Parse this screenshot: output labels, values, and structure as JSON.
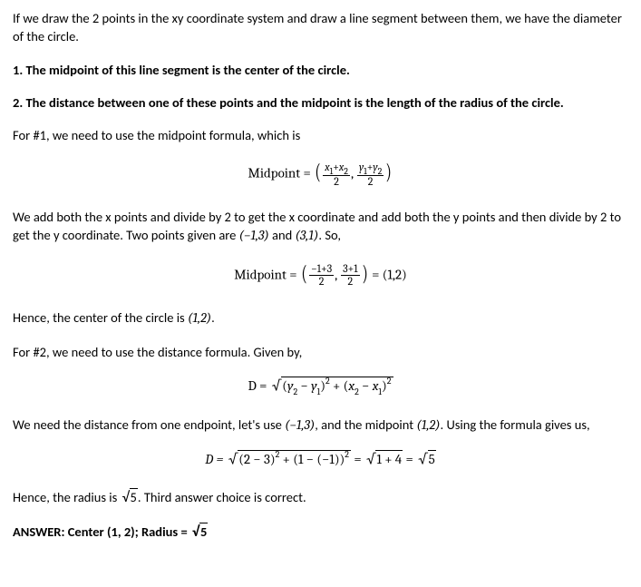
{
  "p1": "If we draw the 2 points in the xy coordinate system and draw a line segment between them, we have the diameter of the circle.",
  "p2": "1. The midpoint of this line segment is the center of the circle.",
  "p3": "2. The distance between one of these points and the midpoint is the length of the radius of the circle.",
  "p4": "For #1, we need to use the midpoint formula, which is",
  "eq1": {
    "label": "Midpoint = ",
    "f1_num": "x₁+x₂",
    "f1_den": "2",
    "f2_num": "y₁+y₂",
    "f2_den": "2"
  },
  "p5_a": "We add both the x points and divide by 2 to get the x coordinate and add both the y points and then divide by 2 to get the y coordinate. Two points given are ",
  "p5_b": "(−1,3)",
  "p5_c": " and ",
  "p5_d": "(3,1)",
  "p5_e": ". So,",
  "eq2": {
    "label": "Midpoint = ",
    "f1_num": "−1+3",
    "f1_den": "2",
    "f2_num": "3+1",
    "f2_den": "2",
    "result": " = (1,2)"
  },
  "p6_a": "Hence, the center of the circle is ",
  "p6_b": "(1,2)",
  "p6_c": ".",
  "p7": "For #2, we need to use the distance formula. Given by,",
  "eq3_label": "D = ",
  "p8_a": "We need the distance from one endpoint, let's use ",
  "p8_b": "(−1,3)",
  "p8_c": ", and the midpoint ",
  "p8_d": "(1,2)",
  "p8_e": ". Using the formula gives us,",
  "eq4_label": "D = ",
  "eq4_mid": " = ",
  "eq4_r2": "1 + 4",
  "eq4_eq2": " = ",
  "eq4_r3": "5",
  "p9_a": "Hence, the radius is ",
  "p9_b": "5",
  "p9_c": ". Third answer choice is correct.",
  "ans_a": "ANSWER: Center ",
  "ans_b": "(1, 2)",
  "ans_c": "; Radius = ",
  "ans_d": "5"
}
